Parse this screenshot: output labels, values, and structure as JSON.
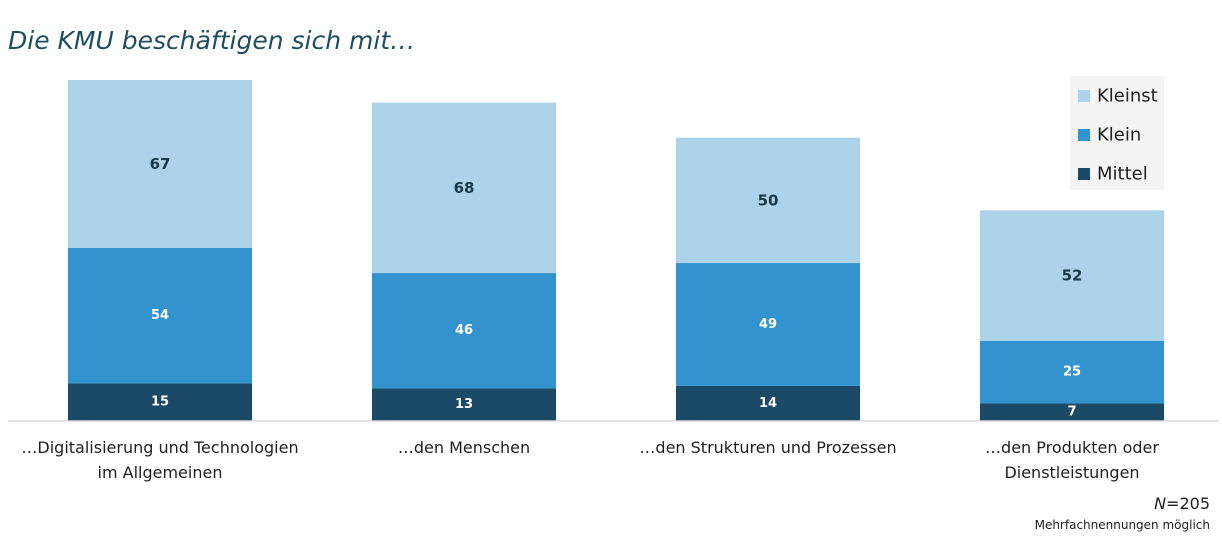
{
  "chart_data": {
    "type": "bar",
    "stacked": true,
    "title": "Die KMU beschäftigen sich mit…",
    "categories": [
      [
        "…Digitalisierung und Technologien",
        "im Allgemeinen"
      ],
      [
        "…den Menschen"
      ],
      [
        "…den Strukturen und Prozessen"
      ],
      [
        "…den Produkten oder",
        "Dienstleistungen"
      ]
    ],
    "series": [
      {
        "name": "Mittel",
        "color": "#1a4a66",
        "label_color": "#ffffff",
        "values": [
          15,
          13,
          14,
          7
        ]
      },
      {
        "name": "Klein",
        "color": "#3393cf",
        "label_color": "#ffffff",
        "values": [
          54,
          46,
          49,
          25
        ]
      },
      {
        "name": "Kleinst",
        "color": "#acd3e9",
        "label_color": "#1a3a4a",
        "values": [
          67,
          68,
          50,
          52
        ]
      }
    ],
    "legend": {
      "placement": "top-right",
      "order": [
        "Kleinst",
        "Klein",
        "Mittel"
      ]
    },
    "ylim": [
      0,
      136
    ],
    "grid": false
  },
  "notes": {
    "n_label": "N",
    "n_value": "=205",
    "multiple": "Mehrfachnennungen möglich"
  }
}
